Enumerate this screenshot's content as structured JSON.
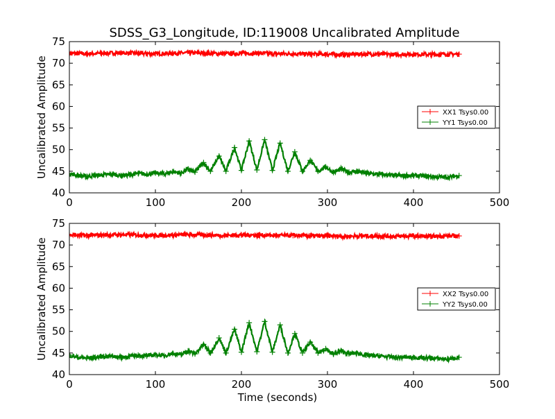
{
  "chart_data": [
    {
      "type": "line",
      "title": "SDSS_G3_Longitude, ID:119008 Uncalibrated Amplitude",
      "xlabel": "",
      "ylabel": "Uncalibrated Amplitude",
      "xlim": [
        0,
        500
      ],
      "ylim": [
        40,
        75
      ],
      "xticks": [
        0,
        100,
        200,
        300,
        400,
        500
      ],
      "yticks": [
        40,
        45,
        50,
        55,
        60,
        65,
        70,
        75
      ],
      "grid": false,
      "legend_position": "center-right",
      "series": [
        {
          "name": "XX1 Tsys0.00",
          "color": "#ff0000",
          "marker": "+",
          "x": [
            0,
            20,
            40,
            60,
            80,
            100,
            120,
            140,
            160,
            180,
            200,
            220,
            240,
            260,
            280,
            300,
            320,
            340,
            360,
            380,
            400,
            420,
            440,
            453
          ],
          "y": [
            72.3,
            72.2,
            72.3,
            72.4,
            72.3,
            72.2,
            72.3,
            72.4,
            72.3,
            72.2,
            72.3,
            72.3,
            72.2,
            72.2,
            72.1,
            72.1,
            72.0,
            72.1,
            72.1,
            72.0,
            72.1,
            72.0,
            72.1,
            72.1
          ]
        },
        {
          "name": "YY1 Tsys0.00",
          "color": "#008000",
          "marker": "+",
          "x": [
            0,
            10,
            20,
            30,
            40,
            50,
            60,
            70,
            80,
            90,
            100,
            110,
            120,
            130,
            138,
            146,
            156,
            164,
            174,
            182,
            192,
            200,
            209,
            218,
            227,
            236,
            245,
            254,
            262,
            271,
            280,
            289,
            298,
            307,
            316,
            325,
            334,
            345,
            360,
            380,
            400,
            420,
            440,
            453
          ],
          "y": [
            44.5,
            44.0,
            43.8,
            44.0,
            44.2,
            44.3,
            44.0,
            44.2,
            44.5,
            44.3,
            44.6,
            44.4,
            44.9,
            44.6,
            45.5,
            44.8,
            47.0,
            45.0,
            48.5,
            45.0,
            50.5,
            45.2,
            52.0,
            45.3,
            52.3,
            45.2,
            51.5,
            45.0,
            49.5,
            45.0,
            47.5,
            45.0,
            46.0,
            44.7,
            45.5,
            44.8,
            45.0,
            44.5,
            44.3,
            44.0,
            44.0,
            43.8,
            43.6,
            44.0
          ]
        }
      ]
    },
    {
      "type": "line",
      "title": "",
      "xlabel": "Time (seconds)",
      "ylabel": "Uncalibrated Amplitude",
      "xlim": [
        0,
        500
      ],
      "ylim": [
        40,
        75
      ],
      "xticks": [
        0,
        100,
        200,
        300,
        400,
        500
      ],
      "yticks": [
        40,
        45,
        50,
        55,
        60,
        65,
        70,
        75
      ],
      "grid": false,
      "legend_position": "center-right",
      "series": [
        {
          "name": "XX2 Tsys0.00",
          "color": "#ff0000",
          "marker": "+",
          "x": [
            0,
            20,
            40,
            60,
            80,
            100,
            120,
            140,
            160,
            180,
            200,
            220,
            240,
            260,
            280,
            300,
            320,
            340,
            360,
            380,
            400,
            420,
            440,
            453
          ],
          "y": [
            72.3,
            72.2,
            72.3,
            72.4,
            72.3,
            72.2,
            72.3,
            72.4,
            72.3,
            72.2,
            72.3,
            72.3,
            72.2,
            72.2,
            72.1,
            72.1,
            72.0,
            72.1,
            72.1,
            72.0,
            72.1,
            72.0,
            72.1,
            72.1
          ]
        },
        {
          "name": "YY2 Tsys0.00",
          "color": "#008000",
          "marker": "+",
          "x": [
            0,
            10,
            20,
            30,
            40,
            50,
            60,
            70,
            80,
            90,
            100,
            110,
            120,
            130,
            138,
            146,
            156,
            164,
            174,
            182,
            192,
            200,
            209,
            218,
            227,
            236,
            245,
            254,
            262,
            271,
            280,
            289,
            298,
            307,
            316,
            325,
            334,
            345,
            360,
            380,
            400,
            420,
            440,
            453
          ],
          "y": [
            44.5,
            44.0,
            43.8,
            44.0,
            44.2,
            44.3,
            44.0,
            44.2,
            44.5,
            44.3,
            44.6,
            44.4,
            44.9,
            44.6,
            45.5,
            44.8,
            47.0,
            45.0,
            48.5,
            45.0,
            50.5,
            45.2,
            52.0,
            45.3,
            52.3,
            45.2,
            51.5,
            45.0,
            49.5,
            45.0,
            47.5,
            45.0,
            46.0,
            44.7,
            45.5,
            44.8,
            45.0,
            44.5,
            44.3,
            44.0,
            44.0,
            43.8,
            43.6,
            44.0
          ]
        }
      ]
    }
  ]
}
